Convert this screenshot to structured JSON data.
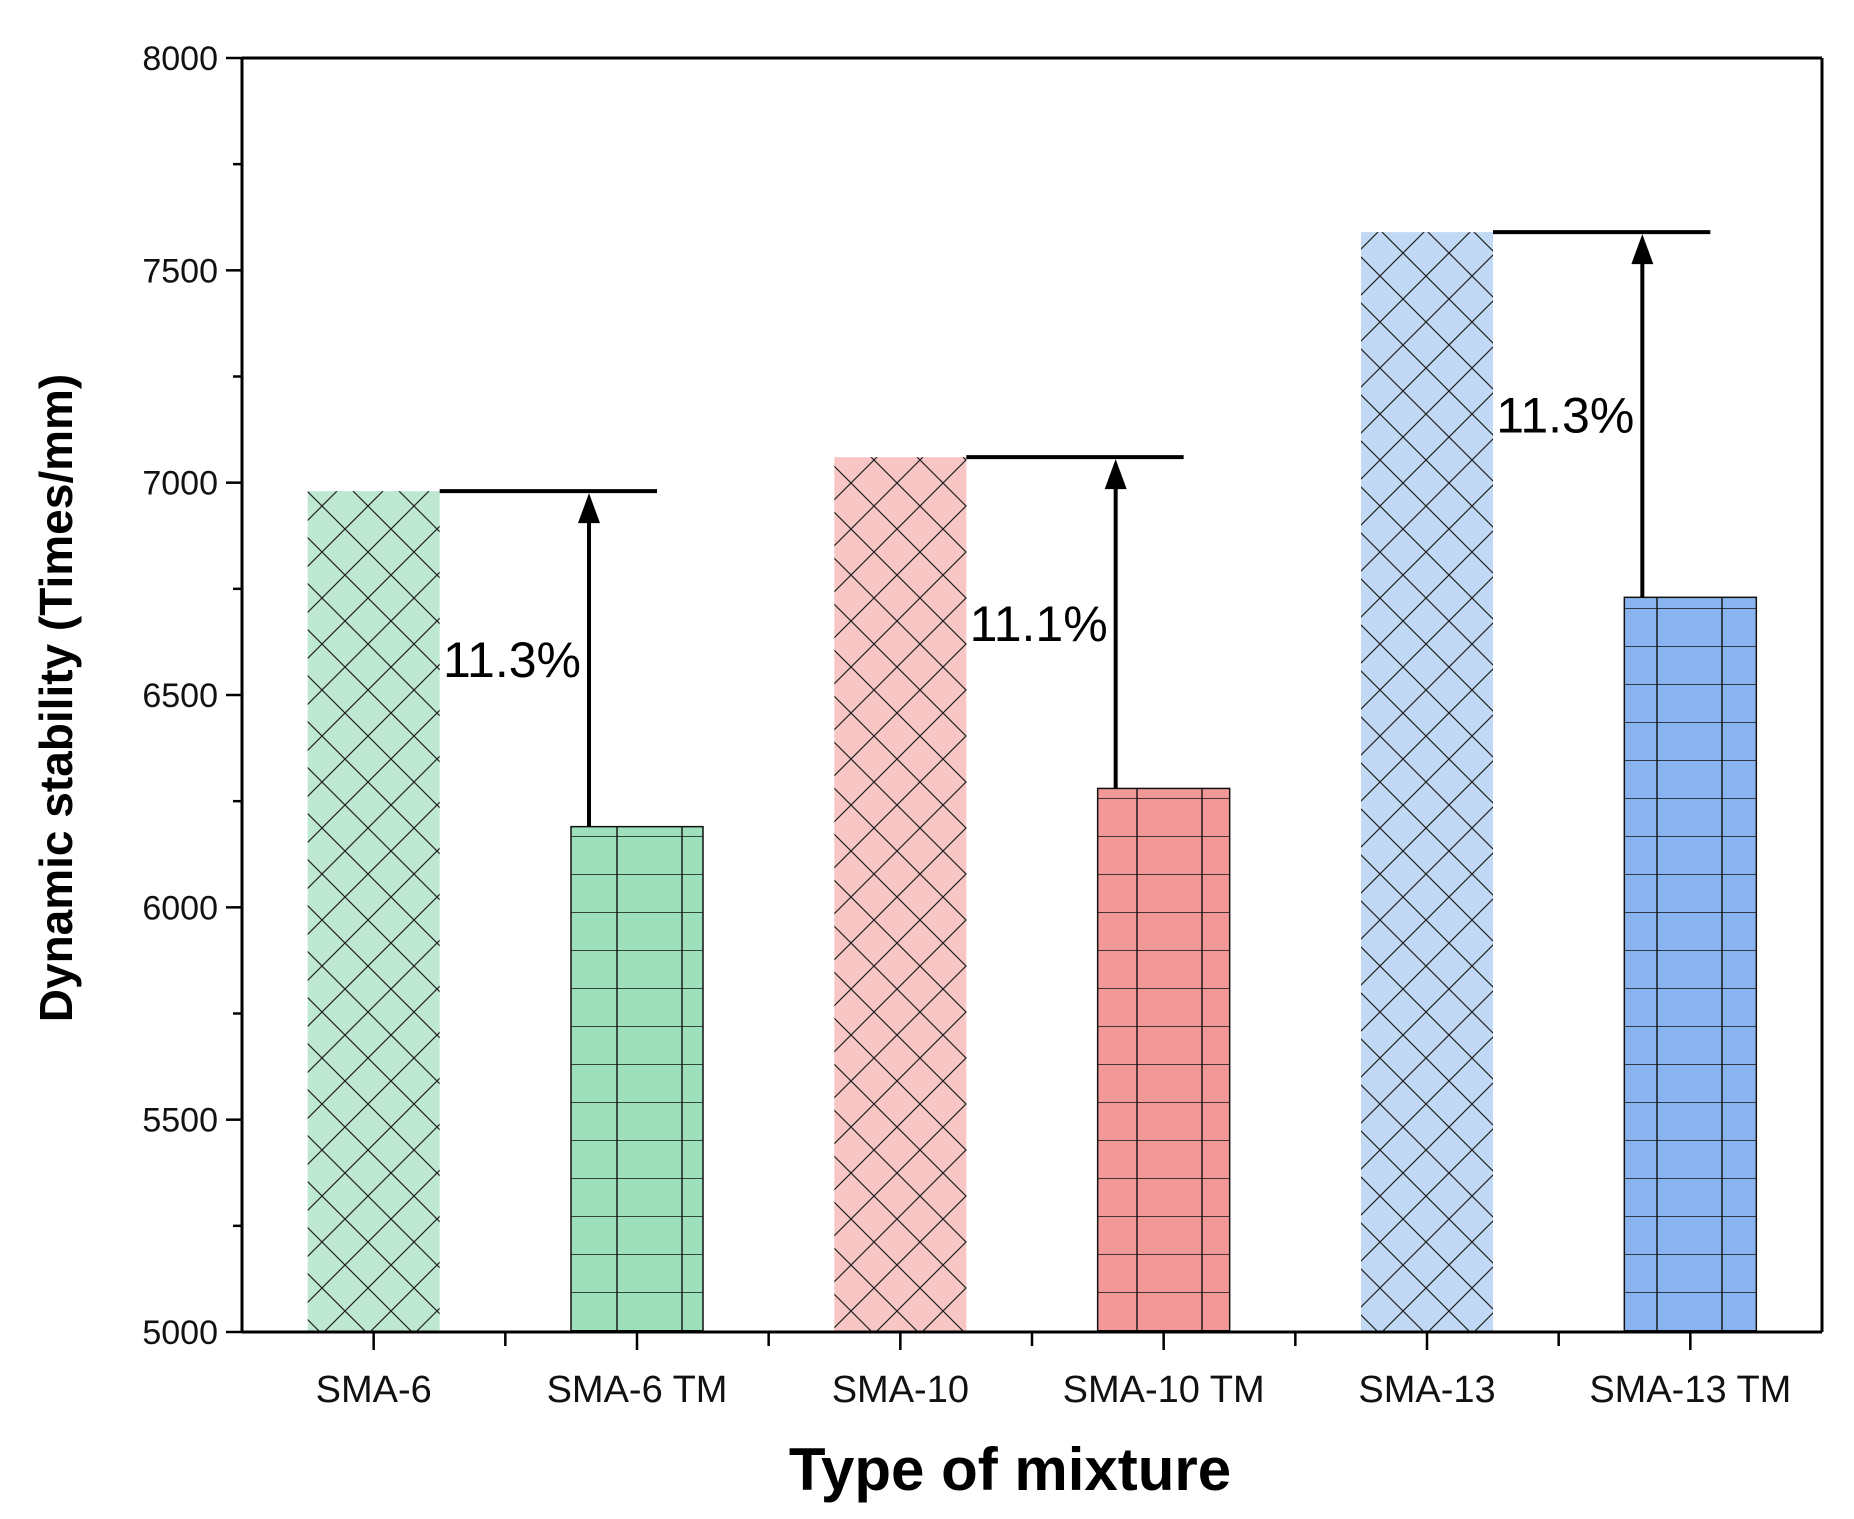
{
  "chart_data": {
    "type": "bar",
    "title": "",
    "xlabel": "Type of mixture",
    "ylabel": "Dynamic stability (Times/mm)",
    "ylim": [
      5000,
      8000
    ],
    "yticks": [
      5000,
      5500,
      6000,
      6500,
      7000,
      7500,
      8000
    ],
    "categories": [
      "SMA-6",
      "SMA-6 TM",
      "SMA-10",
      "SMA-10 TM",
      "SMA-13",
      "SMA-13 TM"
    ],
    "values": [
      6980,
      6190,
      7060,
      6280,
      7590,
      6730
    ],
    "bar_colors": [
      "#bfe8d3",
      "#9ee0bb",
      "#f9c6c6",
      "#f29898",
      "#c2d9f5",
      "#8ab4ef"
    ],
    "bar_patterns": [
      "crosshatch",
      "grid",
      "crosshatch",
      "grid",
      "crosshatch",
      "grid"
    ],
    "grid": false,
    "annotations": [
      {
        "text": "11.3%",
        "from": "SMA-6 TM",
        "to": "SMA-6",
        "from_value": 6190,
        "to_value": 6980
      },
      {
        "text": "11.1%",
        "from": "SMA-10 TM",
        "to": "SMA-10",
        "from_value": 6280,
        "to_value": 7060
      },
      {
        "text": "11.3%",
        "from": "SMA-13 TM",
        "to": "SMA-13",
        "from_value": 6730,
        "to_value": 7590
      }
    ]
  }
}
